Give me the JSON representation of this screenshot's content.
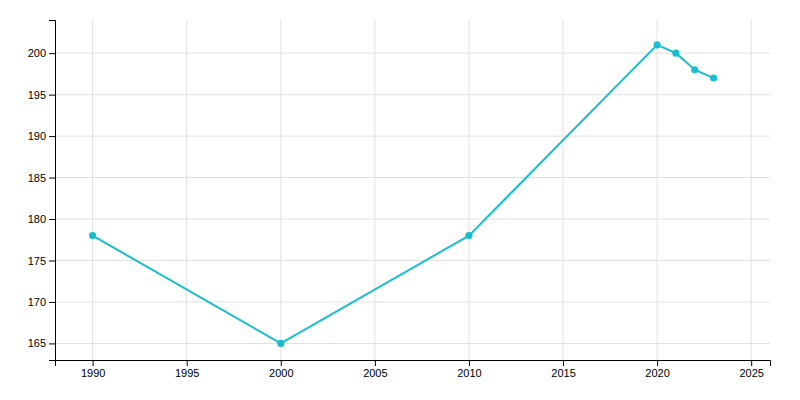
{
  "chart_data": {
    "type": "line",
    "x": [
      1990,
      2000,
      2010,
      2020,
      2021,
      2022,
      2023
    ],
    "values": [
      178,
      165,
      178,
      201,
      200,
      198,
      197
    ],
    "color": "#17becf",
    "marker": "circle",
    "xlim": [
      1988,
      2026
    ],
    "ylim": [
      163,
      204
    ],
    "xticks": [
      1990,
      1995,
      2000,
      2005,
      2010,
      2015,
      2020,
      2025
    ],
    "yticks": [
      165,
      170,
      175,
      180,
      185,
      190,
      195,
      200
    ],
    "grid": true
  }
}
